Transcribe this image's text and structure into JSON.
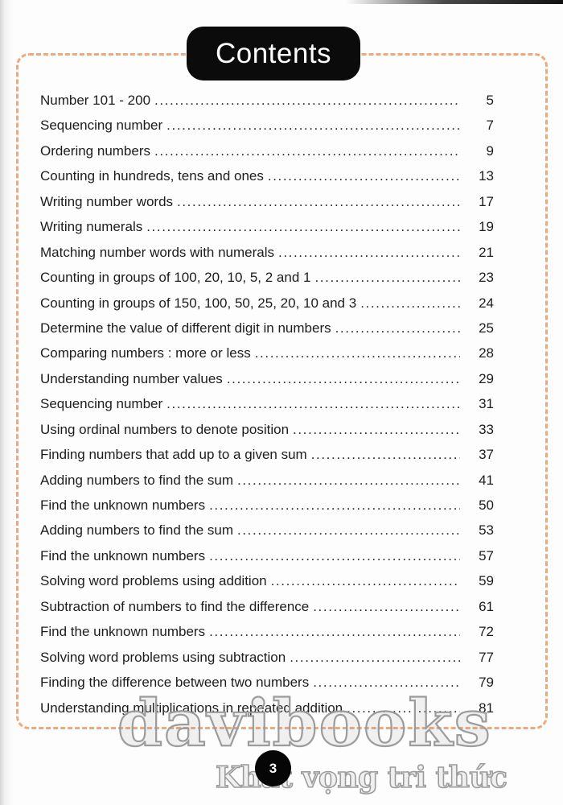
{
  "header": {
    "title": "Contents"
  },
  "toc": {
    "entries": [
      {
        "label": "Number 101 - 200",
        "page": "5"
      },
      {
        "label": "Sequencing number",
        "page": "7"
      },
      {
        "label": "Ordering numbers",
        "page": "9"
      },
      {
        "label": "Counting in hundreds, tens and ones",
        "page": "13"
      },
      {
        "label": "Writing number words",
        "page": "17"
      },
      {
        "label": "Writing numerals",
        "page": "19"
      },
      {
        "label": "Matching number words with numerals",
        "page": "21"
      },
      {
        "label": "Counting in groups of 100, 20, 10, 5, 2 and 1",
        "page": "23"
      },
      {
        "label": "Counting in groups of 150, 100, 50, 25, 20, 10 and 3",
        "page": "24"
      },
      {
        "label": "Determine the value of different digit in numbers",
        "page": "25"
      },
      {
        "label": "Comparing numbers : more or less",
        "page": "28"
      },
      {
        "label": "Understanding number values",
        "page": "29"
      },
      {
        "label": "Sequencing number",
        "page": "31"
      },
      {
        "label": "Using ordinal numbers to denote position",
        "page": "33"
      },
      {
        "label": "Finding numbers that add up to a given sum",
        "page": "37"
      },
      {
        "label": "Adding numbers to find the sum",
        "page": "41"
      },
      {
        "label": "Find the unknown numbers",
        "page": "50"
      },
      {
        "label": "Adding numbers to find the sum",
        "page": "53"
      },
      {
        "label": "Find the unknown numbers",
        "page": "57"
      },
      {
        "label": "Solving word problems using addition",
        "page": "59"
      },
      {
        "label": "Subtraction of numbers to find the difference",
        "page": "61"
      },
      {
        "label": "Find the unknown numbers",
        "page": "72"
      },
      {
        "label": "Solving word problems using subtraction",
        "page": "77"
      },
      {
        "label": "Finding the difference between two numbers",
        "page": "79"
      },
      {
        "label": "Understanding multiplications in repeated addition",
        "page": "81"
      }
    ]
  },
  "watermark": {
    "main": "davibooks",
    "slogan": "Khát vọng tri thức"
  },
  "footer": {
    "page_number": "3"
  },
  "colors": {
    "border_dash": "#ebaa7e",
    "title_bg": "#0b0b0b",
    "text": "#1d1d1d",
    "watermark_stroke": "#9c9c9c"
  }
}
